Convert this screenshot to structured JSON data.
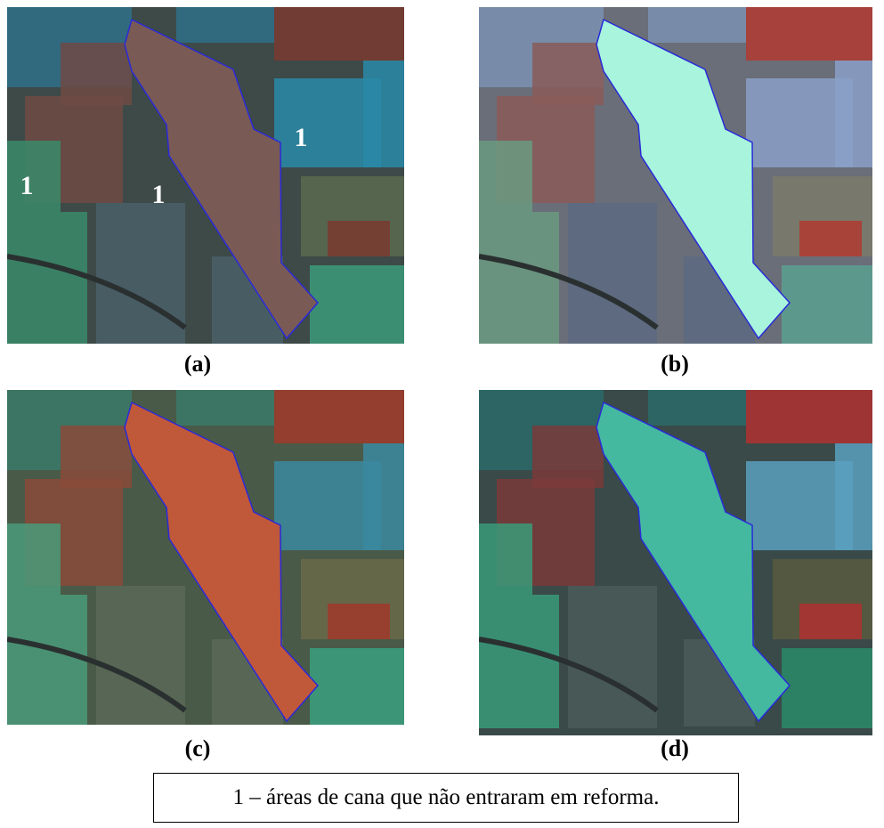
{
  "panels": [
    {
      "label": "(a)",
      "annotations": [
        "1",
        "1",
        "1"
      ]
    },
    {
      "label": "(b)"
    },
    {
      "label": "(c)"
    },
    {
      "label": "(d)"
    }
  ],
  "legend": "1 – áreas de cana que não entraram em reforma."
}
